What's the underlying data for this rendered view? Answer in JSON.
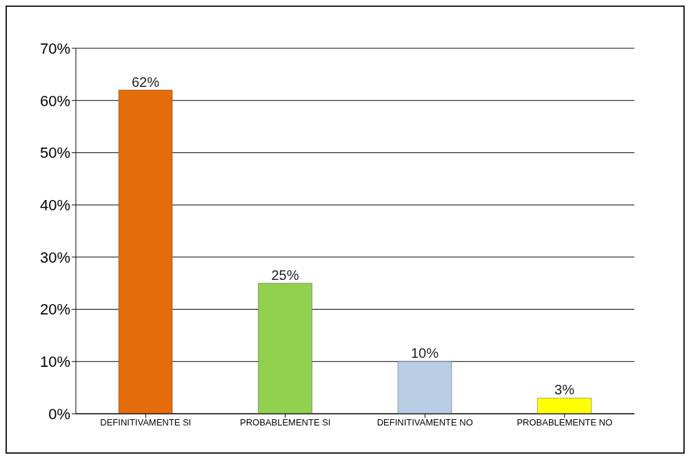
{
  "chart_data": {
    "type": "bar",
    "categories": [
      "DEFINITIVAMENTE SI",
      "PROBABLEMENTE SI",
      "DEFINITIVAMENTE NO",
      "PROBABLEMENTE NO"
    ],
    "values": [
      62,
      25,
      10,
      3
    ],
    "colors": [
      "#e46c0a",
      "#92d050",
      "#b9cde5",
      "#ffff00"
    ],
    "value_labels": [
      "62%",
      "25%",
      "10%",
      "3%"
    ],
    "ylim": [
      0,
      70
    ],
    "yticks": [
      {
        "value": 0,
        "label": "0%"
      },
      {
        "value": 10,
        "label": "10%"
      },
      {
        "value": 20,
        "label": "20%"
      },
      {
        "value": 30,
        "label": "30%"
      },
      {
        "value": 40,
        "label": "40%"
      },
      {
        "value": 50,
        "label": "50%"
      },
      {
        "value": 60,
        "label": "60%"
      },
      {
        "value": 70,
        "label": "70%"
      }
    ],
    "grid": "y"
  }
}
